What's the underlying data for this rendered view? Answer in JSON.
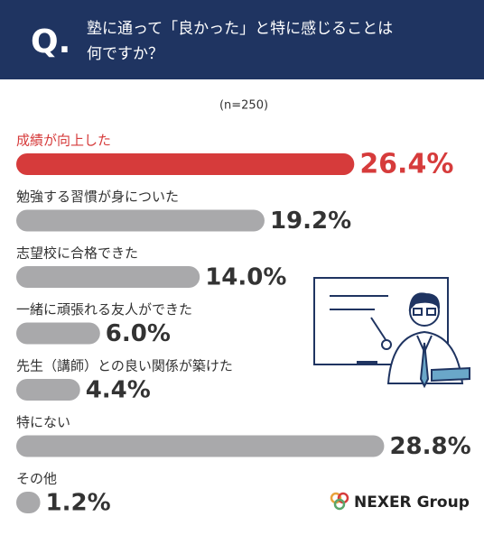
{
  "chart_data": {
    "type": "hbar",
    "title_mark": "Q.",
    "title_lines": [
      "塾に通って「良かった」と特に感じることは",
      "何ですか？"
    ],
    "subtitle": "(n=250)",
    "categories": [
      "成績が向上した",
      "勉強する習慣が身についた",
      "志望校に合格できた",
      "一緒に頑張れる友人ができた",
      "先生（講師）との良い関係が築けた",
      "特にない",
      "その他"
    ],
    "values": [
      26.4,
      19.2,
      14.0,
      6.0,
      4.4,
      28.8,
      1.2
    ],
    "value_labels": [
      "26.4%",
      "19.2%",
      "14.0%",
      "6.0%",
      "4.4%",
      "28.8%",
      "1.2%"
    ],
    "colors": [
      "#d63b3b",
      "#a9a9ab",
      "#a9a9ab",
      "#a9a9ab",
      "#a9a9ab",
      "#a9a9ab",
      "#a9a9ab"
    ],
    "logo": "NEXER Group"
  }
}
